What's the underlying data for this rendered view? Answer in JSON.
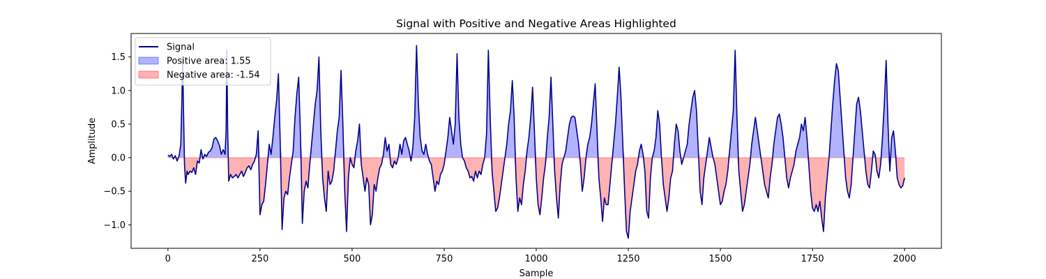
{
  "chart_data": {
    "type": "line",
    "title": "Signal with Positive and Negative Areas Highlighted",
    "xlabel": "Sample",
    "ylabel": "Amplitude",
    "xlim": [
      -100,
      2100
    ],
    "ylim": [
      -1.35,
      1.85
    ],
    "xticks": [
      0,
      250,
      500,
      750,
      1000,
      1250,
      1500,
      1750,
      2000
    ],
    "yticks": [
      -1.0,
      -0.5,
      0.0,
      0.5,
      1.0,
      1.5
    ],
    "xtick_labels": [
      "0",
      "250",
      "500",
      "750",
      "1000",
      "1250",
      "1500",
      "1750",
      "2000"
    ],
    "ytick_labels": [
      "−1.0",
      "−0.5",
      "0.0",
      "0.5",
      "1.0",
      "1.5"
    ],
    "grid": false,
    "legend_position": "top-left",
    "legend": [
      {
        "label": "Signal",
        "kind": "line",
        "color": "#00008b"
      },
      {
        "label": "Positive area: 1.55",
        "kind": "fill",
        "color": "#0000ff"
      },
      {
        "label": "Negative area: -1.54",
        "kind": "fill",
        "color": "#ff0000"
      }
    ],
    "series": [
      {
        "name": "Signal",
        "color": "#00008b",
        "positive_fill": "#0000ff",
        "negative_fill": "#ff0000",
        "fill_alpha": 0.3,
        "x": [
          0,
          5,
          10,
          15,
          20,
          25,
          30,
          35,
          38,
          40,
          42,
          45,
          48,
          52,
          55,
          60,
          65,
          70,
          75,
          80,
          85,
          90,
          95,
          100,
          105,
          110,
          115,
          120,
          125,
          130,
          135,
          140,
          145,
          150,
          155,
          158,
          160,
          162,
          165,
          170,
          175,
          180,
          185,
          190,
          195,
          200,
          205,
          210,
          215,
          220,
          225,
          230,
          235,
          240,
          245,
          250,
          255,
          260,
          265,
          270,
          275,
          280,
          285,
          290,
          295,
          300,
          305,
          310,
          315,
          320,
          325,
          330,
          335,
          340,
          345,
          350,
          355,
          360,
          365,
          370,
          375,
          380,
          385,
          390,
          395,
          400,
          405,
          410,
          415,
          420,
          425,
          430,
          435,
          440,
          445,
          450,
          455,
          460,
          465,
          470,
          475,
          480,
          485,
          490,
          495,
          500,
          505,
          510,
          515,
          520,
          525,
          530,
          535,
          540,
          545,
          550,
          555,
          560,
          565,
          570,
          575,
          580,
          585,
          590,
          595,
          600,
          605,
          610,
          615,
          620,
          625,
          630,
          635,
          640,
          645,
          650,
          655,
          660,
          665,
          670,
          675,
          680,
          685,
          690,
          695,
          700,
          705,
          710,
          715,
          720,
          725,
          730,
          735,
          740,
          745,
          750,
          755,
          760,
          765,
          770,
          775,
          780,
          785,
          790,
          795,
          800,
          805,
          810,
          815,
          820,
          825,
          830,
          835,
          840,
          845,
          850,
          855,
          860,
          865,
          870,
          875,
          880,
          885,
          890,
          895,
          900,
          905,
          910,
          915,
          920,
          925,
          930,
          935,
          940,
          945,
          950,
          955,
          960,
          965,
          970,
          975,
          980,
          985,
          990,
          995,
          1000,
          1005,
          1010,
          1015,
          1020,
          1025,
          1030,
          1035,
          1040,
          1045,
          1050,
          1055,
          1060,
          1065,
          1070,
          1075,
          1080,
          1085,
          1090,
          1095,
          1100,
          1105,
          1110,
          1115,
          1120,
          1125,
          1130,
          1135,
          1140,
          1145,
          1150,
          1155,
          1160,
          1165,
          1170,
          1175,
          1180,
          1185,
          1190,
          1195,
          1200,
          1205,
          1210,
          1215,
          1220,
          1225,
          1230,
          1235,
          1240,
          1245,
          1250,
          1255,
          1260,
          1265,
          1270,
          1275,
          1280,
          1285,
          1290,
          1295,
          1300,
          1305,
          1310,
          1315,
          1320,
          1325,
          1330,
          1335,
          1340,
          1345,
          1350,
          1355,
          1360,
          1365,
          1370,
          1375,
          1380,
          1385,
          1390,
          1395,
          1400,
          1405,
          1410,
          1415,
          1420,
          1425,
          1430,
          1435,
          1440,
          1445,
          1450,
          1455,
          1460,
          1465,
          1470,
          1475,
          1480,
          1485,
          1490,
          1495,
          1500,
          1505,
          1510,
          1515,
          1520,
          1525,
          1530,
          1535,
          1540,
          1545,
          1550,
          1555,
          1560,
          1565,
          1570,
          1575,
          1580,
          1585,
          1590,
          1595,
          1600,
          1605,
          1610,
          1615,
          1620,
          1625,
          1630,
          1635,
          1640,
          1645,
          1650,
          1655,
          1660,
          1665,
          1670,
          1675,
          1680,
          1685,
          1690,
          1695,
          1700,
          1705,
          1710,
          1715,
          1720,
          1725,
          1730,
          1735,
          1740,
          1745,
          1750,
          1755,
          1760,
          1765,
          1770,
          1775,
          1780,
          1785,
          1790,
          1795,
          1800,
          1805,
          1810,
          1815,
          1820,
          1825,
          1830,
          1835,
          1840,
          1845,
          1850,
          1855,
          1860,
          1865,
          1870,
          1875,
          1880,
          1885,
          1890,
          1895,
          1900,
          1905,
          1910,
          1915,
          1920,
          1925,
          1930,
          1935,
          1940,
          1945,
          1950,
          1955,
          1960,
          1965,
          1970,
          1975,
          1980,
          1985,
          1990,
          1995,
          2000
        ],
        "y": [
          0.04,
          0.02,
          0.05,
          -0.02,
          0.03,
          -0.05,
          0.02,
          0.2,
          0.9,
          1.5,
          0.8,
          -0.1,
          -0.38,
          -0.2,
          -0.25,
          -0.2,
          -0.22,
          -0.15,
          -0.25,
          -0.05,
          -0.08,
          0.12,
          -0.02,
          0.05,
          0.02,
          0.08,
          0.1,
          0.15,
          0.28,
          0.3,
          0.25,
          0.18,
          0.05,
          0.12,
          0.05,
          0.4,
          1.6,
          0.5,
          -0.35,
          -0.25,
          -0.3,
          -0.28,
          -0.25,
          -0.3,
          -0.25,
          -0.2,
          -0.28,
          -0.22,
          -0.15,
          -0.12,
          -0.18,
          -0.1,
          -0.05,
          0.05,
          0.4,
          -0.85,
          -0.7,
          -0.65,
          -0.4,
          -0.1,
          0.2,
          0.05,
          0.3,
          0.6,
          0.85,
          1.25,
          0.2,
          -1.07,
          -0.6,
          -0.5,
          -0.55,
          -0.3,
          -0.1,
          0.1,
          0.6,
          0.95,
          1.2,
          0.3,
          -0.98,
          -0.5,
          -0.35,
          -0.45,
          -0.1,
          0.2,
          0.5,
          0.8,
          1.0,
          1.5,
          0.4,
          -0.3,
          -0.6,
          -0.8,
          -0.2,
          -0.4,
          -0.35,
          -0.2,
          0.1,
          0.4,
          0.6,
          1.3,
          0.5,
          -0.5,
          -1.1,
          -0.3,
          0.0,
          -0.1,
          -0.15,
          0.1,
          0.25,
          0.5,
          -0.1,
          -0.3,
          -0.5,
          -0.3,
          -0.4,
          -1.0,
          -0.85,
          -0.4,
          -0.5,
          -0.3,
          -0.15,
          -0.1,
          0.05,
          0.3,
          0.1,
          0.2,
          -0.1,
          -0.15,
          -0.05,
          -0.1,
          0.0,
          0.2,
          0.05,
          0.25,
          0.3,
          0.2,
          0.1,
          -0.05,
          0.15,
          0.6,
          1.67,
          0.8,
          0.3,
          0.1,
          0.05,
          0.2,
          0.05,
          -0.05,
          -0.1,
          -0.3,
          -0.5,
          -0.35,
          -0.4,
          -0.25,
          -0.2,
          -0.1,
          0.1,
          0.3,
          0.6,
          0.4,
          0.2,
          0.5,
          1.55,
          0.6,
          0.2,
          0.0,
          -0.05,
          -0.15,
          -0.2,
          -0.3,
          -0.28,
          -0.35,
          -0.2,
          -0.3,
          -0.2,
          -0.25,
          -0.1,
          0.0,
          0.35,
          1.6,
          0.6,
          -0.2,
          -0.5,
          -0.8,
          -0.75,
          -0.6,
          -0.4,
          -0.2,
          0.0,
          0.2,
          0.5,
          0.7,
          1.15,
          0.6,
          -0.3,
          -0.8,
          -0.6,
          -0.7,
          -0.4,
          -0.2,
          0.1,
          0.3,
          0.6,
          1.05,
          0.4,
          -0.3,
          -0.7,
          -0.85,
          -0.6,
          -0.3,
          -0.1,
          0.3,
          0.6,
          1.2,
          0.5,
          -0.2,
          -0.6,
          -0.9,
          -0.4,
          -0.1,
          0.0,
          0.1,
          0.3,
          0.5,
          0.6,
          0.62,
          0.6,
          0.4,
          0.2,
          -0.1,
          -0.5,
          -0.3,
          0.0,
          0.2,
          0.3,
          0.5,
          0.8,
          1.1,
          0.4,
          -0.3,
          -0.6,
          -0.95,
          -0.6,
          -0.7,
          -0.7,
          -0.4,
          -0.1,
          0.2,
          0.5,
          0.9,
          1.35,
          0.9,
          0.2,
          -0.5,
          -1.1,
          -1.2,
          -0.8,
          -0.6,
          -0.4,
          -0.2,
          -0.1,
          0.1,
          0.2,
          0.05,
          -0.2,
          -0.8,
          -0.9,
          -0.3,
          0.0,
          0.1,
          0.3,
          0.7,
          0.5,
          0.0,
          -0.4,
          -0.6,
          -0.8,
          -0.6,
          -0.3,
          -0.2,
          0.2,
          0.5,
          0.4,
          0.1,
          -0.1,
          0.0,
          0.1,
          0.2,
          0.5,
          0.7,
          0.9,
          1.0,
          0.7,
          0.1,
          -0.5,
          -0.7,
          -0.3,
          -0.1,
          0.1,
          0.3,
          0.15,
          0.0,
          -0.1,
          -0.3,
          -0.5,
          -0.7,
          -0.65,
          -0.5,
          -0.4,
          -0.2,
          0.1,
          0.4,
          0.7,
          1.6,
          0.6,
          -0.2,
          -0.5,
          -0.8,
          -0.7,
          -0.5,
          -0.3,
          -0.1,
          0.2,
          0.4,
          0.6,
          0.4,
          0.2,
          0.0,
          -0.2,
          -0.4,
          -0.5,
          -0.6,
          -0.3,
          -0.1,
          0.2,
          0.4,
          0.6,
          0.65,
          0.5,
          0.3,
          0.0,
          -0.3,
          -0.45,
          -0.3,
          -0.2,
          -0.1,
          0.1,
          0.2,
          0.3,
          0.5,
          0.4,
          0.6,
          0.3,
          -0.1,
          -0.5,
          -0.75,
          -0.8,
          -0.7,
          -0.8,
          -0.65,
          -0.9,
          -1.1,
          -0.6,
          -0.3,
          0.0,
          0.4,
          0.8,
          1.15,
          1.4,
          1.3,
          0.9,
          0.5,
          0.1,
          -0.3,
          -0.5,
          -0.6,
          -0.4,
          0.0,
          0.4,
          0.8,
          0.9,
          0.7,
          0.4,
          0.1,
          -0.2,
          -0.4,
          -0.45,
          -0.2,
          0.1,
          0.05,
          -0.2,
          -0.3,
          -0.1,
          0.3,
          0.8,
          1.45,
          0.5,
          -0.2,
          0.3,
          0.4,
          0.1,
          -0.3,
          -0.4,
          -0.45,
          -0.42,
          -0.3
        ]
      }
    ]
  }
}
